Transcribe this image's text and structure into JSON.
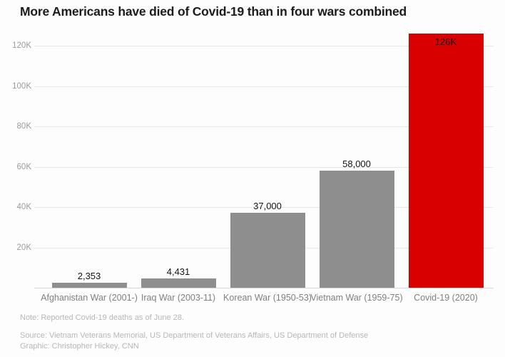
{
  "chart_data": {
    "type": "bar",
    "title": "More Americans have died of Covid-19 than in four wars combined",
    "categories": [
      "Afghanistan War (2001-)",
      "Iraq War (2003-11)",
      "Korean War (1950-53)",
      "Vietnam War (1959-75)",
      "Covid-19 (2020)"
    ],
    "values": [
      2353,
      4431,
      37000,
      58000,
      126000
    ],
    "value_labels": [
      "2,353",
      "4,431",
      "37,000",
      "58,000",
      "126K"
    ],
    "label_positions": [
      "above",
      "above",
      "above",
      "above",
      "inside"
    ],
    "bar_colors": [
      "#8e8e8e",
      "#8e8e8e",
      "#8e8e8e",
      "#8e8e8e",
      "#d80000"
    ],
    "yticks": [
      {
        "value": 20000,
        "label": "20K"
      },
      {
        "value": 40000,
        "label": "40K"
      },
      {
        "value": 60000,
        "label": "60K"
      },
      {
        "value": 80000,
        "label": "80K"
      },
      {
        "value": 100000,
        "label": "100K"
      },
      {
        "value": 120000,
        "label": "120K"
      }
    ],
    "ylim": [
      0,
      128500
    ],
    "xlabel": "",
    "ylabel": "",
    "grid": true,
    "legend": false
  },
  "footer": {
    "note": "Note: Reported Covid-19 deaths as of June 28.",
    "source": "Source: Vietnam Veterans Memorial, US Department of Veterans Affairs, US Department of Defense",
    "graphic": "Graphic: Christopher Hickey, CNN"
  },
  "colors": {
    "highlight_red": "#d80000",
    "bar_gray": "#8e8e8e",
    "title_text": "#1c1c1c",
    "axis_text": "#9b9b9b",
    "footnote_text": "#b7b7b7"
  }
}
